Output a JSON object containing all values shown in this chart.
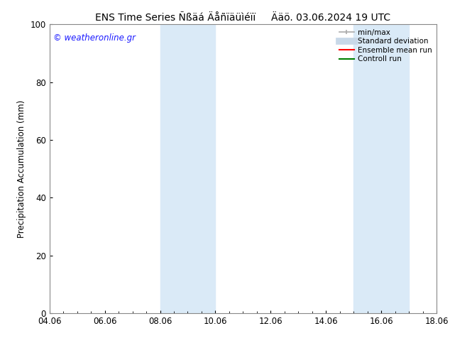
{
  "title": "ENS Time Series Ñßäá Äåñïäüìéïï     Ääö. 03.06.2024 19 UTC",
  "ylabel": "Precipitation Accumulation (mm)",
  "xlim_start": 0.0,
  "xlim_end": 14.0,
  "ylim": [
    0,
    100
  ],
  "yticks": [
    0,
    20,
    40,
    60,
    80,
    100
  ],
  "xtick_labels": [
    "04.06",
    "06.06",
    "08.06",
    "10.06",
    "12.06",
    "14.06",
    "16.06",
    "18.06"
  ],
  "xtick_positions": [
    0,
    2,
    4,
    6,
    8,
    10,
    12,
    14
  ],
  "bg_color": "#ffffff",
  "plot_bg_color": "#ffffff",
  "shaded_regions": [
    {
      "xmin": 4.0,
      "xmax": 6.0,
      "color": "#daeaf7"
    },
    {
      "xmin": 11.0,
      "xmax": 13.0,
      "color": "#daeaf7"
    }
  ],
  "legend_entries": [
    {
      "label": "min/max",
      "color": "#aaaaaa",
      "lw": 1.2
    },
    {
      "label": "Standard deviation",
      "color": "#c8d8e8",
      "lw": 7
    },
    {
      "label": "Ensemble mean run",
      "color": "#ff0000",
      "lw": 1.5
    },
    {
      "label": "Controll run",
      "color": "#008000",
      "lw": 1.5
    }
  ],
  "watermark_text": "© weatheronline.gr",
  "watermark_color": "#1a1aff",
  "spine_color": "#888888",
  "title_fontsize": 10,
  "label_fontsize": 8.5,
  "tick_fontsize": 8.5,
  "legend_fontsize": 7.5
}
